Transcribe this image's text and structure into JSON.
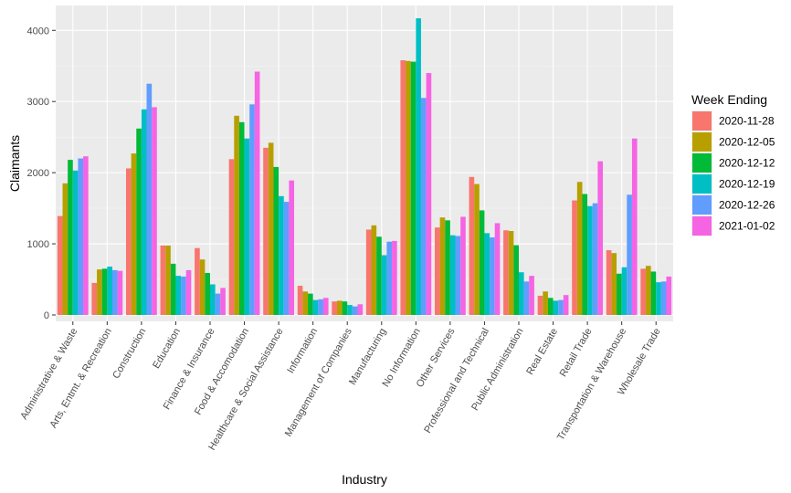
{
  "chart_data": {
    "type": "bar",
    "xlabel": "Industry",
    "ylabel": "Claimants",
    "ylim": [
      -90,
      4350
    ],
    "yticks": [
      0,
      1000,
      2000,
      3000,
      4000
    ],
    "grid": true,
    "legend": {
      "title": "Week Ending",
      "placement": "right"
    },
    "categories": [
      "Administrative & Waste",
      "Arts, Entmt. & Recreation",
      "Construction",
      "Education",
      "Finance & Insurance",
      "Food & Accomodation",
      "Healthcare & Social Assistance",
      "Information",
      "Management of Companies",
      "Manufacturing",
      "No Information",
      "Other Services",
      "Professional and Technical",
      "Public Administration",
      "Real Estate",
      "Retail Trade",
      "Transportation & Warehouse",
      "Wholesale Trade"
    ],
    "series": [
      {
        "name": "2020-11-28",
        "color": "#F8766D",
        "values": [
          1390,
          450,
          2060,
          975,
          940,
          2190,
          2350,
          410,
          190,
          1200,
          3580,
          1230,
          1940,
          1190,
          270,
          1610,
          910,
          650
        ]
      },
      {
        "name": "2020-12-05",
        "color": "#B79F00",
        "values": [
          1850,
          640,
          2270,
          975,
          780,
          2800,
          2420,
          330,
          200,
          1260,
          3570,
          1370,
          1840,
          1180,
          330,
          1870,
          870,
          690
        ]
      },
      {
        "name": "2020-12-12",
        "color": "#00BA38",
        "values": [
          2180,
          650,
          2620,
          720,
          590,
          2710,
          2080,
          300,
          190,
          1100,
          3560,
          1330,
          1470,
          980,
          240,
          1700,
          580,
          610
        ]
      },
      {
        "name": "2020-12-19",
        "color": "#00BFC4",
        "values": [
          2030,
          680,
          2890,
          550,
          430,
          2480,
          1670,
          210,
          140,
          840,
          4170,
          1120,
          1150,
          600,
          200,
          1530,
          670,
          460
        ]
      },
      {
        "name": "2020-12-26",
        "color": "#619CFF",
        "values": [
          2200,
          630,
          3250,
          540,
          300,
          2960,
          1590,
          220,
          120,
          1030,
          3050,
          1110,
          1090,
          470,
          210,
          1570,
          1690,
          470
        ]
      },
      {
        "name": "2021-01-02",
        "color": "#F564E3",
        "values": [
          2230,
          620,
          2920,
          630,
          380,
          3420,
          1890,
          240,
          150,
          1040,
          3400,
          1380,
          1290,
          550,
          280,
          2160,
          2480,
          540
        ]
      }
    ]
  }
}
